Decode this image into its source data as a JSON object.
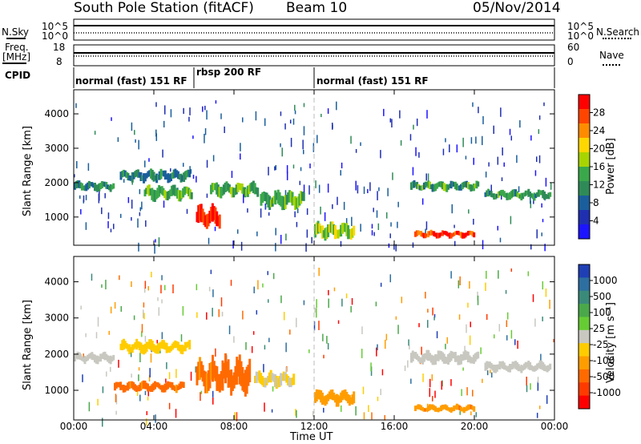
{
  "header": {
    "station": "South Pole Station (fitACF)",
    "beam": "Beam 10",
    "date": "05/Nov/2014"
  },
  "sky_panel": {
    "left_label": "N.Sky",
    "right_label": "N.Search",
    "tick_top": "10^5",
    "tick_bottom": "10^0"
  },
  "freq_panel": {
    "left_label_line1": "Freq.",
    "left_label_line2": "[MHz]",
    "left_tick_top": "18",
    "left_tick_bottom": "8",
    "right_label": "Nave",
    "right_tick_top": "60",
    "right_tick_bottom": "0"
  },
  "cpid": {
    "label": "CPID",
    "segments": [
      {
        "text": "normal (fast) 151 RF",
        "start": "00:00",
        "end": "06:00"
      },
      {
        "text": "rbsp 200 RF",
        "start": "06:00",
        "end": "12:00"
      },
      {
        "text": "normal (fast) 151 RF",
        "start": "12:00",
        "end": "24:00"
      }
    ]
  },
  "colorbars": {
    "power": {
      "label": "Power [dB]",
      "ticks": [
        "28",
        "24",
        "20",
        "16",
        "12",
        "8",
        "4"
      ],
      "colors": [
        "#ff0000",
        "#ff4400",
        "#ff8c00",
        "#ffd700",
        "#a8d400",
        "#3aa84a",
        "#2e8b57",
        "#1a5e9c",
        "#1f2fb0",
        "#1c14ff"
      ]
    },
    "velocity": {
      "label": "Velocity [m s⁻¹]",
      "ticks": [
        "1000",
        "500",
        "100",
        "25",
        "-25",
        "-100",
        "-500",
        "-1000"
      ],
      "colors": [
        "#1f3fb5",
        "#2d6fa0",
        "#3a8a7a",
        "#4aa84a",
        "#66cc33",
        "#c8c8c0",
        "#ffcc00",
        "#ff9d00",
        "#ff6a00",
        "#ff3a00",
        "#ff0000"
      ]
    }
  },
  "chart_data": [
    {
      "type": "heatmap",
      "title": "Power",
      "ylabel": "Slant Range [km]",
      "xlabel": "Time UT",
      "x_ticks": [
        "00:00",
        "04:00",
        "08:00",
        "12:00",
        "16:00",
        "20:00",
        "00:00"
      ],
      "xlim_hours": [
        0,
        24
      ],
      "y_ticks": [
        1000,
        2000,
        3000,
        4000
      ],
      "ylim_km": [
        180,
        4700
      ],
      "colorbar_range_db": [
        0,
        30
      ],
      "regions": [
        {
          "t_start": 0.0,
          "t_end": 2.0,
          "range_center_km": 1900,
          "thickness_km": 200,
          "power_db": 10
        },
        {
          "t_start": 2.3,
          "t_end": 5.8,
          "range_center_km": 2200,
          "thickness_km": 250,
          "power_db": 10
        },
        {
          "t_start": 3.5,
          "t_end": 5.9,
          "range_center_km": 1700,
          "thickness_km": 300,
          "power_db": 14
        },
        {
          "t_start": 6.1,
          "t_end": 7.3,
          "range_center_km": 1000,
          "thickness_km": 450,
          "power_db": 28
        },
        {
          "t_start": 6.8,
          "t_end": 9.2,
          "range_center_km": 1800,
          "thickness_km": 300,
          "power_db": 14
        },
        {
          "t_start": 9.3,
          "t_end": 11.5,
          "range_center_km": 1500,
          "thickness_km": 350,
          "power_db": 14
        },
        {
          "t_start": 12.0,
          "t_end": 14.0,
          "range_center_km": 600,
          "thickness_km": 350,
          "power_db": 16
        },
        {
          "t_start": 17.0,
          "t_end": 20.0,
          "range_center_km": 500,
          "thickness_km": 150,
          "power_db": 26
        },
        {
          "t_start": 16.8,
          "t_end": 20.2,
          "range_center_km": 1900,
          "thickness_km": 200,
          "power_db": 12
        },
        {
          "t_start": 20.5,
          "t_end": 23.8,
          "range_center_km": 1650,
          "thickness_km": 200,
          "power_db": 12
        }
      ],
      "dashed_marker_hour": 12.0
    },
    {
      "type": "heatmap",
      "title": "Velocity",
      "ylabel": "Slant Range [km]",
      "xlabel": "Time UT",
      "x_ticks": [
        "00:00",
        "04:00",
        "08:00",
        "12:00",
        "16:00",
        "20:00",
        "00:00"
      ],
      "xlim_hours": [
        0,
        24
      ],
      "y_ticks": [
        1000,
        2000,
        3000,
        4000
      ],
      "ylim_km": [
        180,
        4700
      ],
      "colorbar_range_ms": [
        -1000,
        1000
      ],
      "regions": [
        {
          "t_start": 0.0,
          "t_end": 2.0,
          "range_center_km": 1900,
          "thickness_km": 200,
          "velocity_ms": 0
        },
        {
          "t_start": 2.3,
          "t_end": 5.8,
          "range_center_km": 2200,
          "thickness_km": 250,
          "velocity_ms": -200
        },
        {
          "t_start": 2.0,
          "t_end": 5.5,
          "range_center_km": 1100,
          "thickness_km": 200,
          "velocity_ms": -500
        },
        {
          "t_start": 6.1,
          "t_end": 8.8,
          "range_center_km": 1400,
          "thickness_km": 700,
          "velocity_ms": -500
        },
        {
          "t_start": 9.0,
          "t_end": 11.0,
          "range_center_km": 1300,
          "thickness_km": 300,
          "velocity_ms": -100
        },
        {
          "t_start": 12.0,
          "t_end": 14.0,
          "range_center_km": 800,
          "thickness_km": 300,
          "velocity_ms": -400
        },
        {
          "t_start": 17.0,
          "t_end": 20.0,
          "range_center_km": 500,
          "thickness_km": 150,
          "velocity_ms": -400
        },
        {
          "t_start": 16.8,
          "t_end": 20.2,
          "range_center_km": 1900,
          "thickness_km": 250,
          "velocity_ms": 0
        },
        {
          "t_start": 20.5,
          "t_end": 23.8,
          "range_center_km": 1650,
          "thickness_km": 200,
          "velocity_ms": 0
        }
      ],
      "dashed_marker_hour": 12.0
    }
  ]
}
